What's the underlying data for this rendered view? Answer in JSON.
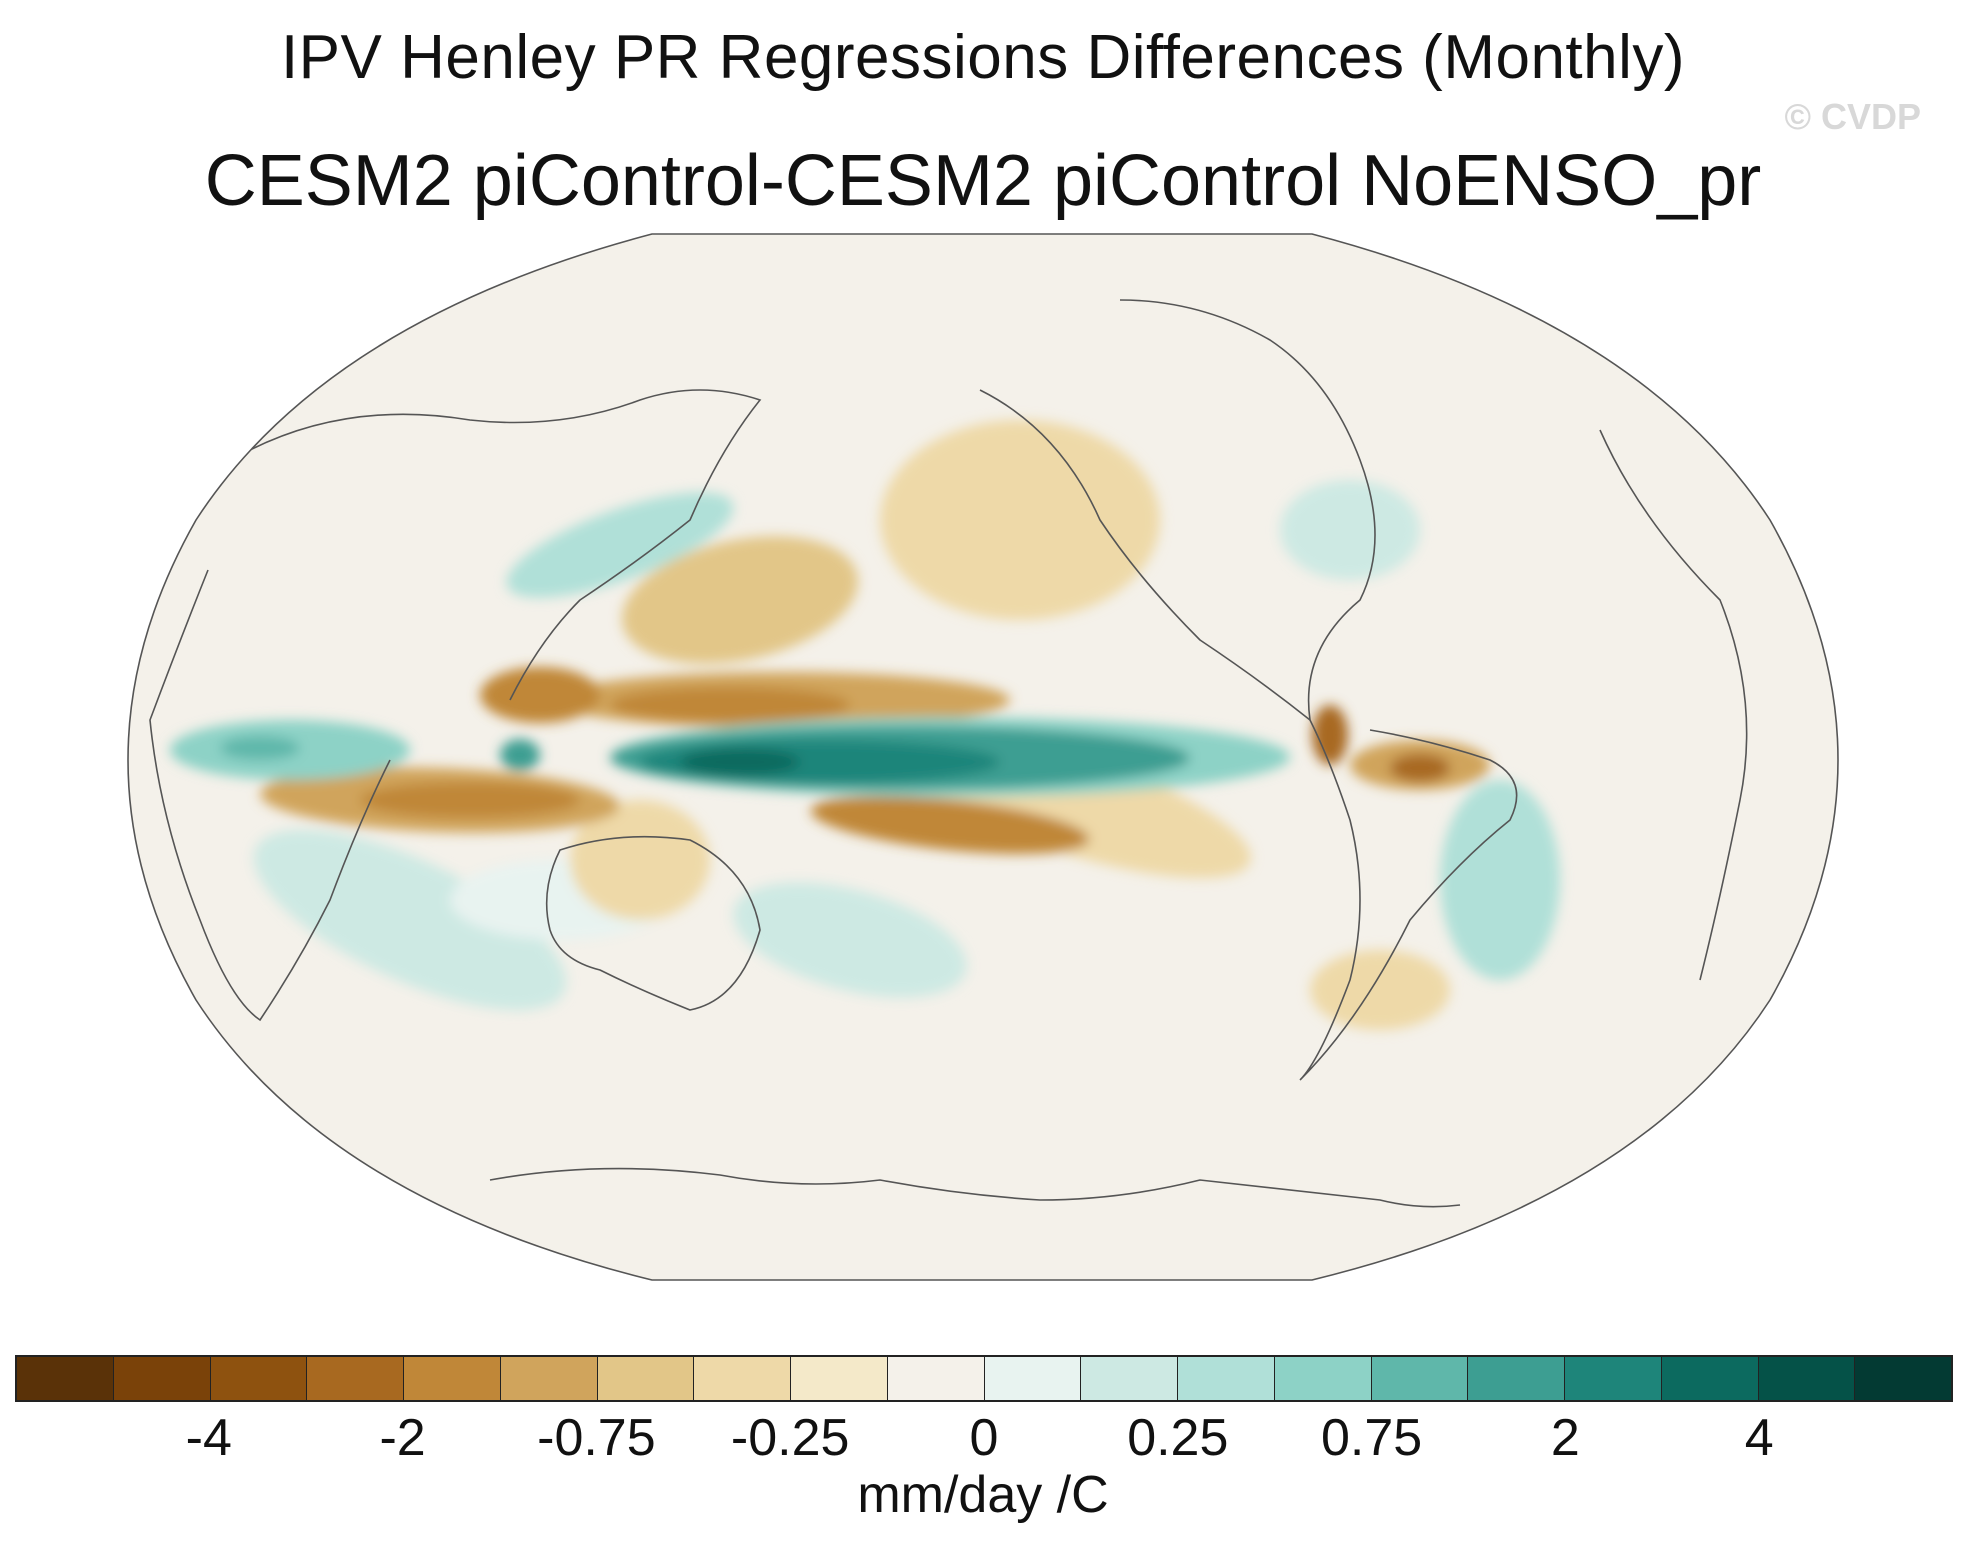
{
  "title": "IPV Henley PR Regressions Differences (Monthly)",
  "subtitle": "CESM2 piControl-CESM2 piControl NoENSO_pr",
  "watermark": "© CVDP",
  "colorbar": {
    "units": "mm/day /C",
    "colors": [
      "#5a3208",
      "#7a4209",
      "#8e520f",
      "#a86920",
      "#c08738",
      "#d0a45c",
      "#e2c688",
      "#eed9a8",
      "#f4e9c9",
      "#f4f1ea",
      "#e8f3f0",
      "#cde9e3",
      "#b0e0d8",
      "#8dd2c6",
      "#5fb7aa",
      "#3d9e92",
      "#1e857a",
      "#0c6a5f",
      "#055248",
      "#033a33"
    ],
    "tick_labels": [
      "-4",
      "-2",
      "-0.75",
      "-0.25",
      "0",
      "0.25",
      "0.75",
      "2",
      "4"
    ]
  },
  "map": {
    "projection": "Robinson",
    "central_longitude": 180,
    "background_color": "#f4f1ea",
    "coastline_color": "#555555"
  }
}
